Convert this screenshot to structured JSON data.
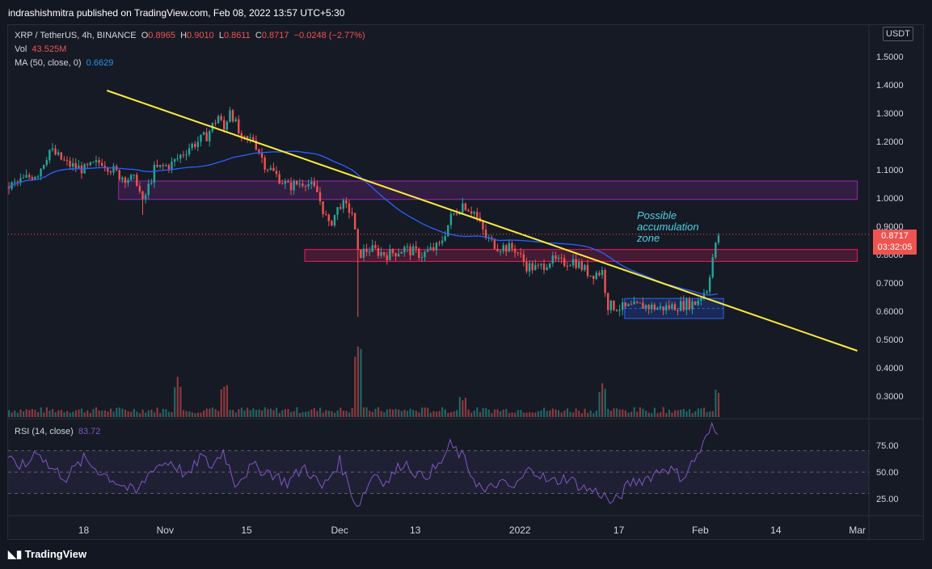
{
  "publisher": {
    "text": "indrashishmitra published on TradingView.com, Feb 08, 2022 13:57 UTC+5:30"
  },
  "legend": {
    "symbol": "XRP / TetherUS, 4h, BINANCE",
    "open_label": "O",
    "open": "0.8965",
    "high_label": "H",
    "high": "0.9010",
    "low_label": "L",
    "low": "0.8611",
    "close_label": "C",
    "close": "0.8717",
    "change": "−0.0248 (−2.77%)",
    "vol_label": "Vol",
    "vol": "43.525M",
    "ma_label": "MA (50, close, 0)",
    "ma": "0.6629",
    "rsi_label": "RSI (14, close)",
    "rsi": "83.72"
  },
  "currency_button": "USDT",
  "price_tag": {
    "price": "0.8717",
    "countdown": "03:32:05"
  },
  "annotation": {
    "line1": "Possible",
    "line2": "accumulation",
    "line3": "zone"
  },
  "logo": "TradingView",
  "colors": {
    "up": "#26a69a",
    "down": "#ef5350",
    "ma": "#2962ff",
    "rsi": "#7e57c2",
    "trend": "#ffeb3b",
    "zone_purple": "#9c27b0",
    "zone_pink": "#e91e63",
    "zone_blue": "#2962ff"
  },
  "chart_data": [
    {
      "type": "candlestick",
      "title": "XRP / TetherUS, 4h, BINANCE",
      "ylim": [
        0.22,
        1.6
      ],
      "y_ticks": [
        "1.5000",
        "1.4000",
        "1.3000",
        "1.2000",
        "1.1000",
        "1.0000",
        "0.9000",
        "0.8000",
        "0.7000",
        "0.6000",
        "0.5000",
        "0.4000",
        "0.3000"
      ],
      "x_ticks": [
        "18",
        "Nov",
        "15",
        "Dec",
        "13",
        "2022",
        "17",
        "Feb",
        "14",
        "Mar"
      ],
      "x_tick_days": [
        0,
        14,
        28,
        44,
        57,
        75,
        92,
        106,
        119,
        133
      ],
      "x_range_days": [
        -13,
        135
      ],
      "price_path": [
        [
          -13,
          1.04
        ],
        [
          -8,
          1.09
        ],
        [
          -6,
          1.17
        ],
        [
          -3,
          1.12
        ],
        [
          0,
          1.1
        ],
        [
          3,
          1.13
        ],
        [
          6,
          1.08
        ],
        [
          9,
          1.06
        ],
        [
          10,
          0.98
        ],
        [
          12,
          1.1
        ],
        [
          15,
          1.12
        ],
        [
          18,
          1.18
        ],
        [
          21,
          1.22
        ],
        [
          23,
          1.29
        ],
        [
          24,
          1.24
        ],
        [
          25,
          1.32
        ],
        [
          27,
          1.2
        ],
        [
          29,
          1.21
        ],
        [
          31,
          1.12
        ],
        [
          33,
          1.08
        ],
        [
          35,
          1.04
        ],
        [
          38,
          1.06
        ],
        [
          40,
          1.02
        ],
        [
          42,
          0.9
        ],
        [
          44,
          0.98
        ],
        [
          46,
          0.95
        ],
        [
          47,
          0.8
        ],
        [
          49,
          0.82
        ],
        [
          52,
          0.8
        ],
        [
          55,
          0.82
        ],
        [
          58,
          0.8
        ],
        [
          61,
          0.83
        ],
        [
          63,
          0.93
        ],
        [
          65,
          0.98
        ],
        [
          67,
          0.95
        ],
        [
          69,
          0.86
        ],
        [
          71,
          0.83
        ],
        [
          74,
          0.82
        ],
        [
          76,
          0.76
        ],
        [
          78,
          0.75
        ],
        [
          80,
          0.78
        ],
        [
          82,
          0.77
        ],
        [
          84,
          0.78
        ],
        [
          87,
          0.73
        ],
        [
          89,
          0.74
        ],
        [
          90,
          0.62
        ],
        [
          93,
          0.61
        ],
        [
          96,
          0.62
        ],
        [
          99,
          0.61
        ],
        [
          102,
          0.62
        ],
        [
          105,
          0.63
        ],
        [
          107,
          0.68
        ],
        [
          108,
          0.79
        ],
        [
          109,
          0.87
        ]
      ],
      "ma_label": "MA (50, close, 0)",
      "ma_last": 0.6629,
      "last_close": 0.8717,
      "trendline": [
        [
          4,
          1.38
        ],
        [
          133,
          0.46
        ]
      ],
      "zones": [
        {
          "name": "purple-resistance-zone",
          "x": [
            6,
            133
          ],
          "y": [
            0.995,
            1.06
          ]
        },
        {
          "name": "pink-support-zone",
          "x": [
            38,
            133
          ],
          "y": [
            0.776,
            0.818
          ]
        },
        {
          "name": "blue-accumulation-zone",
          "x": [
            93,
            110
          ],
          "y": [
            0.574,
            0.645
          ]
        }
      ],
      "annotation": "Possible accumulation zone"
    },
    {
      "type": "bar",
      "title": "Vol",
      "last": "43.525M",
      "spikes": [
        [
          16,
          0.55
        ],
        [
          24,
          0.5
        ],
        [
          47,
          1.0
        ],
        [
          65,
          0.3
        ],
        [
          89,
          0.45
        ],
        [
          109,
          0.45
        ]
      ]
    },
    {
      "type": "line",
      "title": "RSI (14, close)",
      "last": 83.72,
      "ylim": [
        10,
        100
      ],
      "band": [
        30,
        70
      ],
      "y_ticks": [
        "75.00",
        "50.00",
        "25.00"
      ],
      "points": [
        [
          -13,
          60
        ],
        [
          -10,
          55
        ],
        [
          -8,
          72
        ],
        [
          -6,
          55
        ],
        [
          -3,
          45
        ],
        [
          0,
          62
        ],
        [
          3,
          50
        ],
        [
          6,
          40
        ],
        [
          9,
          30
        ],
        [
          12,
          55
        ],
        [
          15,
          60
        ],
        [
          18,
          45
        ],
        [
          20,
          65
        ],
        [
          22,
          55
        ],
        [
          24,
          70
        ],
        [
          26,
          40
        ],
        [
          29,
          55
        ],
        [
          32,
          50
        ],
        [
          35,
          40
        ],
        [
          38,
          55
        ],
        [
          41,
          35
        ],
        [
          44,
          60
        ],
        [
          47,
          18
        ],
        [
          50,
          50
        ],
        [
          52,
          40
        ],
        [
          55,
          60
        ],
        [
          58,
          45
        ],
        [
          61,
          55
        ],
        [
          63,
          75
        ],
        [
          65,
          65
        ],
        [
          67,
          45
        ],
        [
          69,
          30
        ],
        [
          71,
          40
        ],
        [
          74,
          35
        ],
        [
          77,
          55
        ],
        [
          80,
          40
        ],
        [
          83,
          45
        ],
        [
          86,
          35
        ],
        [
          89,
          30
        ],
        [
          91,
          20
        ],
        [
          94,
          40
        ],
        [
          97,
          45
        ],
        [
          100,
          55
        ],
        [
          103,
          45
        ],
        [
          106,
          70
        ],
        [
          108,
          92
        ],
        [
          109,
          84
        ]
      ]
    }
  ]
}
